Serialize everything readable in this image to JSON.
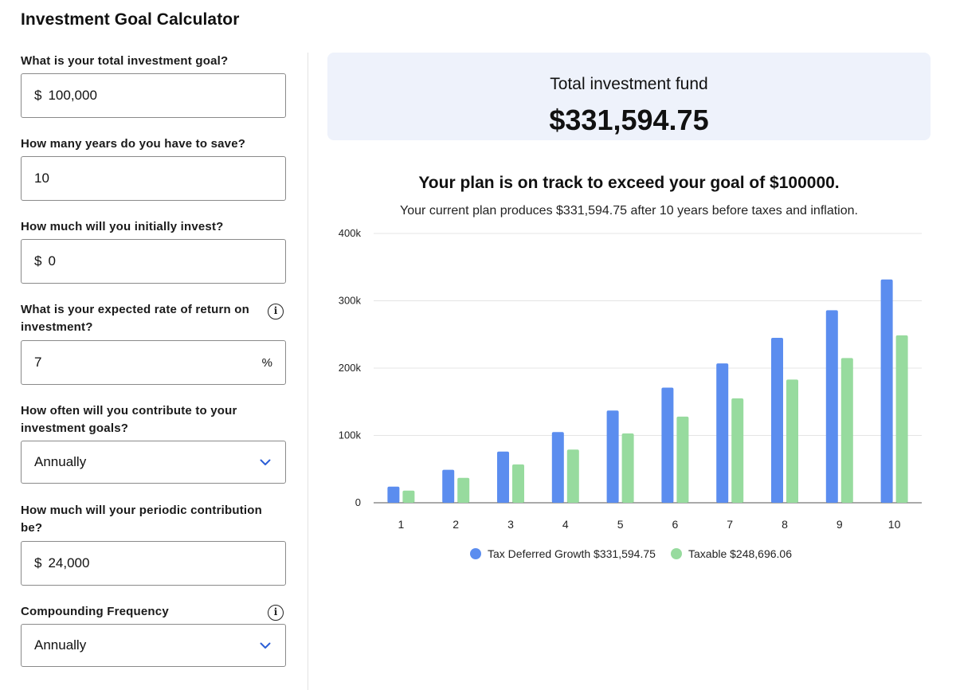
{
  "page": {
    "title": "Investment Goal Calculator"
  },
  "form": {
    "goal": {
      "label": "What is your total investment goal?",
      "prefix": "$",
      "value": "100,000"
    },
    "years": {
      "label": "How many years do you have to save?",
      "value": "10"
    },
    "initial": {
      "label": "How much will you initially invest?",
      "prefix": "$",
      "value": "0"
    },
    "rate": {
      "label_line1": "What is your expected rate of return on",
      "label_line2": "investment?",
      "value": "7",
      "suffix": "%"
    },
    "frequency": {
      "label_line1": "How often will you contribute to your",
      "label_line2": "investment goals?",
      "value": "Annually"
    },
    "contribution": {
      "label_line1": "How much will your periodic contribution",
      "label_line2": "be?",
      "prefix": "$",
      "value": "24,000"
    },
    "compounding": {
      "label": "Compounding Frequency",
      "value": "Annually"
    },
    "info_glyph": "i"
  },
  "summary": {
    "label": "Total investment fund",
    "value": "$331,594.75"
  },
  "status": {
    "headline": "Your plan is on track to exceed your goal of $100000.",
    "subtext": "Your current plan produces $331,594.75 after 10 years before taxes and inflation."
  },
  "icons": {
    "info": "info-circle-icon",
    "dropdown": "chevron-down-icon"
  },
  "colors": {
    "tax_deferred": "#5b8def",
    "taxable": "#97db9e",
    "summary_bg": "#eef2fb",
    "chevron": "#2c5fd6"
  },
  "chart_data": {
    "type": "bar",
    "categories": [
      "1",
      "2",
      "3",
      "4",
      "5",
      "6",
      "7",
      "8",
      "9",
      "10"
    ],
    "series": [
      {
        "name": "Tax Deferred Growth $331,594.75",
        "values": [
          24000,
          49000,
          76000,
          105000,
          137000,
          171000,
          207000,
          245000,
          286000,
          331595
        ]
      },
      {
        "name": "Taxable $248,696.06",
        "values": [
          18000,
          37000,
          57000,
          79000,
          103000,
          128000,
          155000,
          183000,
          215000,
          248696
        ]
      }
    ],
    "y_ticks": [
      "0",
      "100k",
      "200k",
      "300k",
      "400k"
    ],
    "ylim": [
      0,
      400000
    ],
    "grid": true,
    "legend": "bottom"
  }
}
